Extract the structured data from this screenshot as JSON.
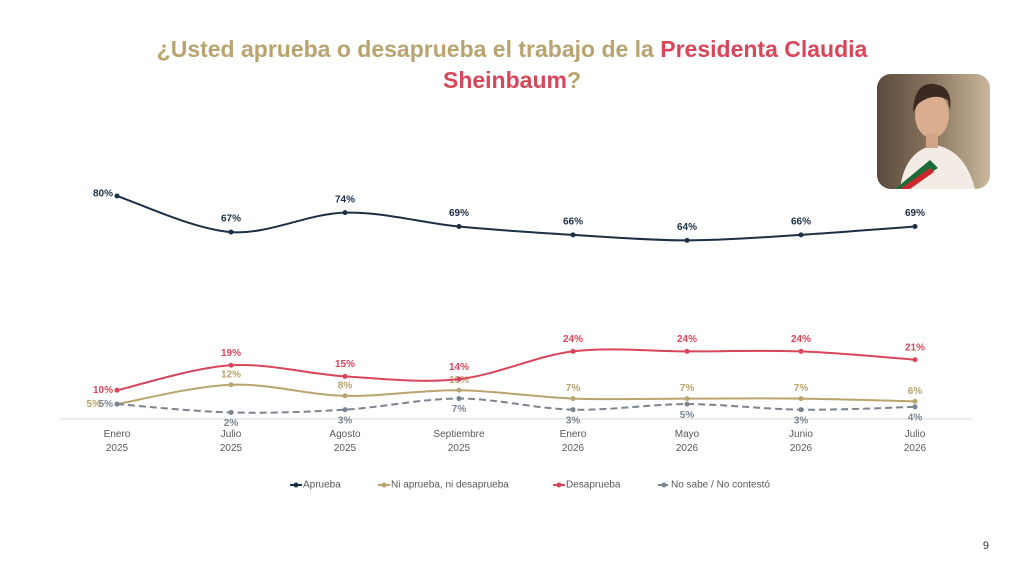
{
  "chart_data": {
    "type": "line",
    "title": [
      "¿Usted aprueba o desaprueba el trabajo de la ",
      "Presidenta Claudia Sheinbaum",
      "?"
    ],
    "categories": [
      "Enero 2025",
      "Julio 2025",
      "Agosto 2025",
      "Septiembre 2025",
      "Enero 2026",
      "Mayo 2026",
      "Junio 2026",
      "Julio 2026"
    ],
    "ylim": [
      0,
      80
    ],
    "series": [
      {
        "name": "Aprueba",
        "color": "#1b2f45",
        "dashed": false,
        "values": [
          80,
          67,
          74,
          69,
          66,
          64,
          66,
          69
        ],
        "value_labels": [
          "80%",
          "67%",
          "74%",
          "69%",
          "66%",
          "64%",
          "66%",
          "69%"
        ]
      },
      {
        "name": "Ni aprueba, ni desaprueba",
        "color": "#b9a46f",
        "dashed": false,
        "values": [
          5,
          12,
          8,
          10,
          7,
          7,
          7,
          6
        ],
        "value_labels": [
          "5%",
          "12%",
          "8%",
          "10%",
          "7%",
          "7%",
          "7%",
          "6%"
        ]
      },
      {
        "name": "Desaprueba",
        "color": "#d8465a",
        "dashed": false,
        "values": [
          10,
          19,
          15,
          14,
          24,
          24,
          24,
          21
        ],
        "value_labels": [
          "10%",
          "19%",
          "15%",
          "14%",
          "24%",
          "24%",
          "24%",
          "21%"
        ]
      },
      {
        "name": "No sabe / No contestó",
        "color": "#7b8591",
        "dashed": true,
        "values": [
          5,
          2,
          3,
          7,
          3,
          5,
          3,
          4
        ],
        "value_labels": [
          "5%",
          "2%",
          "3%",
          "7%",
          "3%",
          "5%",
          "3%",
          "4%"
        ]
      }
    ],
    "page_number": "9"
  }
}
